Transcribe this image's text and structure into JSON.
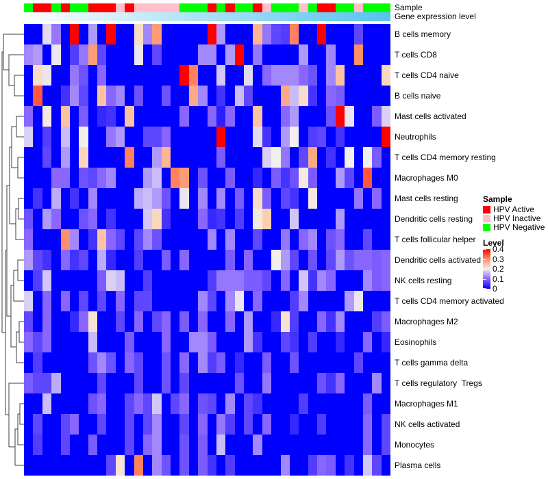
{
  "annotation": {
    "sample_label": "Sample",
    "gene_label": "Gene expression level",
    "sample_groups": [
      "HPV Negative",
      "HPV Active",
      "HPV Active",
      "HPV Negative",
      "HPV Active",
      "HPV Negative",
      "HPV Negative",
      "HPV Active",
      "HPV Active",
      "HPV Active",
      "HPV Inactive",
      "HPV Active",
      "HPV Inactive",
      "HPV Inactive",
      "HPV Inactive",
      "HPV Inactive",
      "HPV Inactive",
      "HPV Negative",
      "HPV Negative",
      "HPV Negative",
      "HPV Active",
      "HPV Negative",
      "HPV Active",
      "HPV Negative",
      "HPV Negative",
      "HPV Active",
      "HPV Inactive",
      "HPV Negative",
      "HPV Negative",
      "HPV Negative",
      "HPV Inactive",
      "HPV Negative",
      "HPV Active",
      "HPV Active",
      "HPV Negative",
      "HPV Negative",
      "HPV Inactive",
      "HPV Negative",
      "HPV Negative",
      "HPV Negative"
    ]
  },
  "legend": {
    "sample_title": "Sample",
    "sample_items": [
      {
        "label": "HPV Active",
        "color": "#ff0000"
      },
      {
        "label": "HPV Inactive",
        "color": "#ffc0cb"
      },
      {
        "label": "HPV Negative",
        "color": "#00ff00"
      }
    ],
    "level_title": "Level",
    "level_ticks": [
      "0.4",
      "0.3",
      "0.2",
      "0.1",
      "0"
    ]
  },
  "colors": {
    "group_colors": {
      "HPV Active": "#ff0000",
      "HPV Inactive": "#ffc0cb",
      "HPV Negative": "#00ff00"
    },
    "gene_gradient_left": "#fdfeff",
    "gene_gradient_right": "#55c3ef",
    "level_gradient_top": "#ff0000",
    "level_gradient_bottom": "#0000ff"
  },
  "chart_data": {
    "type": "heatmap",
    "title": "",
    "n_cols": 40,
    "value_range": [
      0,
      0.4
    ],
    "colormap_stops": [
      [
        0,
        "#0000ff"
      ],
      [
        0.1,
        "#8866ff"
      ],
      [
        0.15,
        "#c9bcf7"
      ],
      [
        0.2,
        "#f2efec"
      ],
      [
        0.25,
        "#fbd0b2"
      ],
      [
        0.3,
        "#ff8f68"
      ],
      [
        0.4,
        "#ff0000"
      ]
    ],
    "rows": [
      "B cells memory",
      "T cells CD8",
      "T cells CD4 naive",
      "B cells naive",
      "Mast cells activated",
      "Neutrophils",
      "T cells CD4 memory resting",
      "Macrophages M0",
      "Mast cells resting",
      "Dendritic cells resting",
      "T cells follicular helper",
      "Dendritic cells activated",
      "NK cells resting",
      "T cells CD4 memory activated",
      "Macrophages M2",
      "Eosinophils",
      "T cells gamma delta",
      "T cells regulatory  Tregs",
      "Macrophages M1",
      "NK cells activated",
      "Monocytes",
      "Plasma cells"
    ],
    "values": [
      [
        0,
        0,
        0.18,
        0.11,
        0,
        0.4,
        0,
        0.13,
        0,
        0.4,
        0,
        0,
        0.23,
        0.12,
        0.29,
        0,
        0,
        0,
        0,
        0,
        0.4,
        0.13,
        0,
        0,
        0,
        0.27,
        0.11,
        0.07,
        0.06,
        0.31,
        0,
        0,
        0.4,
        0,
        0,
        0,
        0.07,
        0,
        0,
        0
      ],
      [
        0.12,
        0.13,
        0,
        0.19,
        0,
        0.06,
        0.11,
        0.29,
        0.07,
        0,
        0,
        0,
        0.19,
        0,
        0.07,
        0,
        0,
        0,
        0,
        0.12,
        0.12,
        0,
        0.13,
        0.4,
        0,
        0.11,
        0,
        0,
        0,
        0,
        0.13,
        0,
        0,
        0.12,
        0,
        0,
        0.3,
        0,
        0,
        0
      ],
      [
        0,
        0.23,
        0.19,
        0,
        0,
        0.11,
        0.08,
        0,
        0.1,
        0,
        0,
        0,
        0,
        0,
        0,
        0,
        0,
        0.4,
        0.31,
        0,
        0,
        0.16,
        0,
        0,
        0.18,
        0,
        0.1,
        0.12,
        0.12,
        0.12,
        0.1,
        0.08,
        0,
        0.12,
        0.26,
        0,
        0,
        0,
        0,
        0.24
      ],
      [
        0,
        0.34,
        0,
        0,
        0.05,
        0.12,
        0.07,
        0,
        0.26,
        0.1,
        0.12,
        0,
        0.08,
        0,
        0,
        0.08,
        0,
        0,
        0.28,
        0.12,
        0,
        0.05,
        0,
        0.15,
        0.07,
        0,
        0,
        0,
        0.28,
        0.15,
        0.23,
        0.05,
        0,
        0.1,
        0.09,
        0,
        0,
        0,
        0,
        0
      ],
      [
        0.1,
        0,
        0.21,
        0,
        0.26,
        0,
        0.09,
        0,
        0.04,
        0.05,
        0,
        0.26,
        0,
        0,
        0,
        0,
        0,
        0.1,
        0,
        0,
        0.1,
        0.03,
        0.1,
        0,
        0,
        0.26,
        0,
        0,
        0.1,
        0.13,
        0,
        0,
        0,
        0.08,
        0.4,
        0.19,
        0,
        0,
        0.09,
        0.17
      ],
      [
        0.17,
        0,
        0.06,
        0,
        0.15,
        0,
        0.2,
        0,
        0,
        0.11,
        0.13,
        0,
        0,
        0.07,
        0.07,
        0.1,
        0,
        0,
        0,
        0,
        0,
        0.4,
        0,
        0,
        0,
        0.18,
        0.05,
        0,
        0.13,
        0.2,
        0,
        0.06,
        0.07,
        0,
        0.05,
        0,
        0,
        0,
        0,
        0.4
      ],
      [
        0,
        0,
        0.07,
        0,
        0.13,
        0,
        0.24,
        0,
        0,
        0,
        0,
        0.31,
        0,
        0,
        0.13,
        0.27,
        0,
        0,
        0,
        0,
        0,
        0.09,
        0,
        0,
        0,
        0,
        0.17,
        0.2,
        0.11,
        0,
        0.07,
        0.28,
        0,
        0.05,
        0,
        0.2,
        0,
        0.2,
        0.09,
        0
      ],
      [
        0,
        0,
        0,
        0.1,
        0.1,
        0,
        0.08,
        0.07,
        0.1,
        0.12,
        0,
        0,
        0,
        0.13,
        0.15,
        0,
        0.31,
        0.29,
        0,
        0.08,
        0,
        0,
        0.09,
        0,
        0,
        0.04,
        0,
        0.09,
        0.05,
        0.08,
        0.21,
        0.09,
        0,
        0,
        0.13,
        0.07,
        0,
        0.34,
        0,
        0
      ],
      [
        0,
        0.05,
        0,
        0.14,
        0,
        0.05,
        0,
        0.12,
        0,
        0,
        0,
        0,
        0.14,
        0.15,
        0.13,
        0.08,
        0,
        0.19,
        0,
        0.12,
        0,
        0.12,
        0,
        0.09,
        0,
        0.23,
        0.09,
        0,
        0.07,
        0.05,
        0,
        0.21,
        0,
        0,
        0,
        0,
        0.11,
        0,
        0.1,
        0
      ],
      [
        0.08,
        0,
        0.13,
        0.1,
        0,
        0,
        0.08,
        0.1,
        0,
        0.05,
        0,
        0,
        0,
        0.16,
        0.24,
        0.05,
        0,
        0,
        0,
        0.1,
        0.04,
        0.05,
        0,
        0.06,
        0,
        0.21,
        0.25,
        0,
        0,
        0.16,
        0,
        0,
        0,
        0,
        0.13,
        0,
        0,
        0,
        0,
        0
      ],
      [
        0.1,
        0,
        0,
        0,
        0.3,
        0.12,
        0,
        0.05,
        0.26,
        0.1,
        0.07,
        0,
        0.07,
        0.12,
        0.08,
        0,
        0,
        0,
        0,
        0,
        0.12,
        0,
        0.12,
        0,
        0,
        0.07,
        0,
        0,
        0.11,
        0,
        0.1,
        0.12,
        0,
        0.08,
        0.1,
        0,
        0,
        0.07,
        0,
        0
      ],
      [
        0.13,
        0.07,
        0.05,
        0,
        0.1,
        0.05,
        0.07,
        0,
        0.14,
        0.04,
        0,
        0,
        0.06,
        0,
        0,
        0.09,
        0,
        0.1,
        0,
        0,
        0,
        0,
        0.09,
        0,
        0.1,
        0,
        0,
        0.2,
        0.13,
        0.07,
        0,
        0.08,
        0,
        0.07,
        0.13,
        0.08,
        0.1,
        0.1,
        0.09,
        0.1
      ],
      [
        0,
        0.06,
        0.16,
        0,
        0,
        0,
        0,
        0,
        0.09,
        0.17,
        0.15,
        0,
        0,
        0.06,
        0,
        0,
        0,
        0,
        0,
        0,
        0.06,
        0.11,
        0.11,
        0.11,
        0.09,
        0.09,
        0.07,
        0,
        0.1,
        0,
        0.16,
        0.05,
        0.12,
        0.1,
        0,
        0,
        0,
        0.12,
        0.09,
        0.1
      ],
      [
        0.17,
        0,
        0.1,
        0,
        0.1,
        0,
        0.07,
        0,
        0.07,
        0,
        0.1,
        0,
        0.07,
        0.07,
        0,
        0,
        0,
        0,
        0,
        0.12,
        0.07,
        0,
        0.12,
        0.19,
        0,
        0.1,
        0,
        0,
        0,
        0.06,
        0.12,
        0,
        0,
        0,
        0,
        0.13,
        0.19,
        0,
        0,
        0
      ],
      [
        0.07,
        0,
        0.1,
        0,
        0,
        0.04,
        0.1,
        0.22,
        0,
        0,
        0.07,
        0,
        0.1,
        0,
        0.07,
        0.1,
        0,
        0.09,
        0,
        0.1,
        0,
        0,
        0.1,
        0,
        0.13,
        0,
        0,
        0.04,
        0.22,
        0.06,
        0,
        0,
        0.1,
        0.05,
        0.12,
        0,
        0,
        0,
        0.06,
        0.09
      ],
      [
        0.1,
        0.07,
        0.1,
        0,
        0,
        0,
        0,
        0.15,
        0,
        0,
        0,
        0.09,
        0,
        0,
        0,
        0.1,
        0,
        0,
        0.12,
        0.12,
        0.09,
        0,
        0,
        0,
        0.13,
        0.05,
        0,
        0,
        0.07,
        0.05,
        0,
        0.06,
        0,
        0,
        0.04,
        0,
        0,
        0.1,
        0,
        0.04
      ],
      [
        0,
        0.06,
        0,
        0,
        0,
        0,
        0,
        0.08,
        0.12,
        0.08,
        0,
        0.1,
        0.07,
        0,
        0,
        0.08,
        0,
        0.1,
        0,
        0.12,
        0.06,
        0.09,
        0,
        0.04,
        0,
        0,
        0.09,
        0,
        0,
        0.08,
        0,
        0,
        0,
        0,
        0,
        0,
        0.07,
        0,
        0,
        0
      ],
      [
        0.09,
        0.07,
        0.07,
        0.14,
        0,
        0,
        0,
        0,
        0.07,
        0,
        0,
        0,
        0.07,
        0,
        0,
        0.08,
        0,
        0.07,
        0,
        0,
        0,
        0,
        0,
        0.08,
        0,
        0,
        0.11,
        0,
        0,
        0,
        0,
        0,
        0.08,
        0.05,
        0.1,
        0,
        0,
        0,
        0.12,
        0
      ],
      [
        0,
        0,
        0.15,
        0,
        0,
        0,
        0,
        0.08,
        0.1,
        0,
        0,
        0.07,
        0.1,
        0.07,
        0.16,
        0,
        0.07,
        0.1,
        0,
        0.08,
        0.07,
        0,
        0.12,
        0,
        0.07,
        0.05,
        0,
        0,
        0,
        0,
        0.06,
        0,
        0,
        0,
        0,
        0,
        0,
        0.09,
        0,
        0
      ],
      [
        0,
        0.07,
        0,
        0,
        0.07,
        0.1,
        0,
        0,
        0.07,
        0,
        0,
        0.07,
        0,
        0.07,
        0.12,
        0,
        0,
        0.07,
        0,
        0.1,
        0,
        0.11,
        0.06,
        0,
        0.07,
        0,
        0.1,
        0,
        0,
        0.04,
        0,
        0,
        0.06,
        0,
        0,
        0,
        0,
        0.1,
        0,
        0.07
      ],
      [
        0,
        0.06,
        0,
        0,
        0.07,
        0,
        0,
        0.09,
        0,
        0,
        0,
        0.07,
        0,
        0.1,
        0.12,
        0,
        0,
        0.08,
        0,
        0.09,
        0,
        0.15,
        0,
        0,
        0,
        0.12,
        0,
        0,
        0,
        0,
        0,
        0,
        0,
        0,
        0,
        0,
        0,
        0.1,
        0,
        0.07
      ],
      [
        0,
        0,
        0,
        0,
        0,
        0,
        0,
        0,
        0,
        0.07,
        0.22,
        0,
        0.31,
        0,
        0.12,
        0.08,
        0,
        0.08,
        0,
        0.09,
        0.05,
        0,
        0.06,
        0,
        0,
        0,
        0,
        0,
        0.12,
        0,
        0,
        0.06,
        0.1,
        0.09,
        0,
        0.05,
        0,
        0.16,
        0.07,
        0
      ]
    ]
  }
}
